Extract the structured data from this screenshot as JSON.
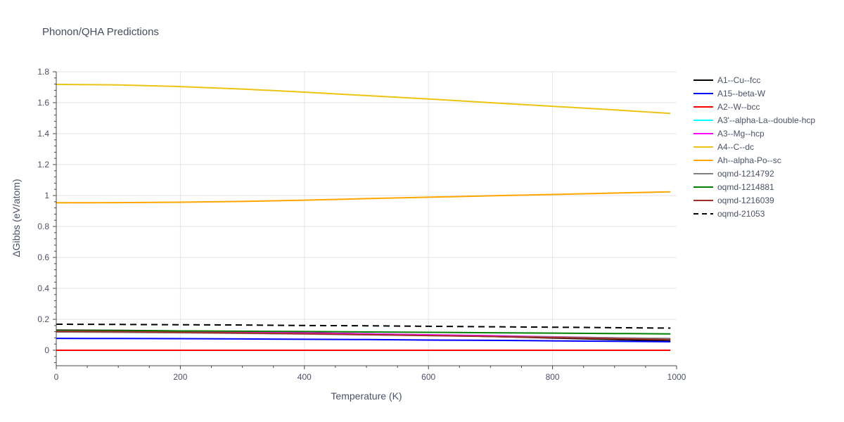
{
  "chart_data": {
    "type": "line",
    "title": "Phonon/QHA Predictions",
    "xlabel": "Temperature (K)",
    "ylabel": "ΔGibbs (eV/atom)",
    "xlim": [
      0,
      1000
    ],
    "ylim": [
      -0.1,
      1.8
    ],
    "x_ticks": [
      0,
      200,
      400,
      600,
      800,
      1000
    ],
    "x_tick_labels": [
      "0",
      "200",
      "400",
      "600",
      "800",
      "1000"
    ],
    "y_ticks": [
      0,
      0.2,
      0.4,
      0.6,
      0.8,
      1.0,
      1.2,
      1.4,
      1.6,
      1.8
    ],
    "y_tick_labels": [
      "0",
      "0.2",
      "0.4",
      "0.6",
      "0.8",
      "1",
      "1.2",
      "1.4",
      "1.6",
      "1.8"
    ],
    "grid": true,
    "legend_position": "right",
    "x": [
      0,
      100,
      200,
      300,
      400,
      500,
      600,
      700,
      800,
      900,
      990
    ],
    "series": [
      {
        "name": "A1--Cu--fcc",
        "color": "#000000",
        "dash": "solid",
        "values": [
          0.13,
          0.128,
          0.125,
          0.12,
          0.113,
          0.106,
          0.098,
          0.089,
          0.079,
          0.069,
          0.06
        ]
      },
      {
        "name": "A15--beta-W",
        "color": "#0000ff",
        "dash": "solid",
        "values": [
          0.077,
          0.076,
          0.075,
          0.073,
          0.071,
          0.069,
          0.066,
          0.064,
          0.061,
          0.058,
          0.055
        ]
      },
      {
        "name": "A2--W--bcc",
        "color": "#ff0000",
        "dash": "solid",
        "values": [
          0.0,
          0.0,
          0.0,
          0.0,
          0.0,
          0.0,
          0.0,
          0.0,
          0.0,
          0.0,
          0.0
        ]
      },
      {
        "name": "A3'--alpha-La--double-hcp",
        "color": "#00ffff",
        "dash": "solid",
        "values": [
          0.124,
          0.122,
          0.12,
          0.116,
          0.111,
          0.105,
          0.099,
          0.093,
          0.086,
          0.079,
          0.072
        ]
      },
      {
        "name": "A3--Mg--hcp",
        "color": "#ff00ff",
        "dash": "solid",
        "values": [
          0.126,
          0.124,
          0.121,
          0.117,
          0.112,
          0.106,
          0.1,
          0.094,
          0.087,
          0.08,
          0.073
        ]
      },
      {
        "name": "A4--C--dc",
        "color": "#ebc413",
        "dash": "solid",
        "values": [
          1.718,
          1.715,
          1.704,
          1.688,
          1.668,
          1.646,
          1.624,
          1.6,
          1.577,
          1.553,
          1.531
        ]
      },
      {
        "name": "Ah--alpha-Po--sc",
        "color": "#ffa500",
        "dash": "solid",
        "values": [
          0.953,
          0.954,
          0.957,
          0.962,
          0.97,
          0.98,
          0.989,
          0.998,
          1.007,
          1.016,
          1.024
        ]
      },
      {
        "name": "oqmd-1214792",
        "color": "#808080",
        "dash": "solid",
        "values": [
          0.118,
          0.116,
          0.113,
          0.109,
          0.105,
          0.1,
          0.095,
          0.09,
          0.085,
          0.08,
          0.076
        ]
      },
      {
        "name": "oqmd-1214881",
        "color": "#008000",
        "dash": "solid",
        "values": [
          0.127,
          0.126,
          0.125,
          0.123,
          0.121,
          0.118,
          0.116,
          0.113,
          0.111,
          0.108,
          0.106
        ]
      },
      {
        "name": "oqmd-1216039",
        "color": "#a52a2a",
        "dash": "solid",
        "values": [
          0.122,
          0.12,
          0.116,
          0.112,
          0.107,
          0.101,
          0.095,
          0.089,
          0.082,
          0.075,
          0.069
        ]
      },
      {
        "name": "oqmd-21053",
        "color": "#000000",
        "dash": "dash",
        "values": [
          0.168,
          0.167,
          0.165,
          0.163,
          0.16,
          0.158,
          0.155,
          0.152,
          0.149,
          0.146,
          0.143
        ]
      }
    ]
  }
}
